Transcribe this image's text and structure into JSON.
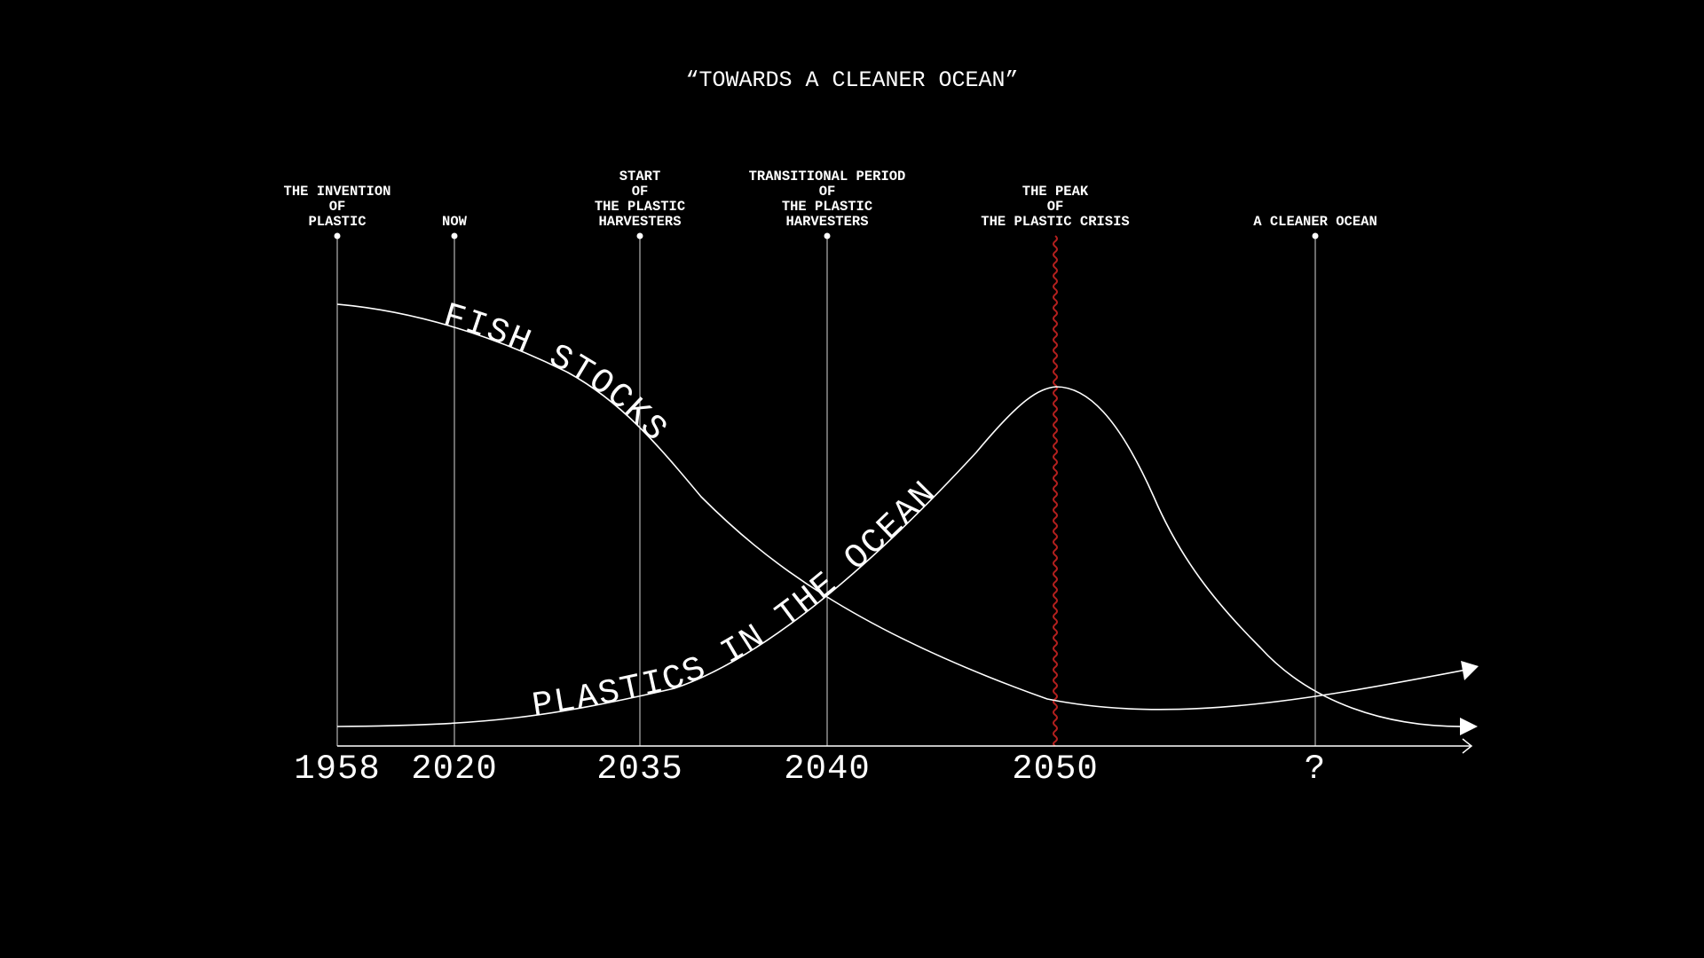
{
  "title": "“TOWARDS A CLEANER OCEAN”",
  "chart_data": {
    "type": "line",
    "title": "“TOWARDS A CLEANER OCEAN”",
    "xlabel": "",
    "ylabel": "",
    "grid": false,
    "milestones": [
      {
        "year": "1958",
        "label": [
          "THE INVENTION",
          "OF",
          "PLASTIC"
        ]
      },
      {
        "year": "2020",
        "label": [
          "NOW"
        ]
      },
      {
        "year": "2035",
        "label": [
          "START",
          "OF",
          "THE PLASTIC",
          "HARVESTERS"
        ]
      },
      {
        "year": "2040",
        "label": [
          "TRANSITIONAL PERIOD",
          "OF",
          "THE PLASTIC",
          "HARVESTERS"
        ]
      },
      {
        "year": "2050",
        "label": [
          "THE PEAK",
          "OF",
          "THE PLASTIC CRISIS"
        ],
        "highlight": true
      },
      {
        "year": "?",
        "label": [
          "A CLEANER OCEAN"
        ]
      }
    ],
    "series": [
      {
        "name": "FISH STOCKS",
        "shape": "declining S-curve, leveling off and rising slightly at the end"
      },
      {
        "name": "PLASTICS IN THE OCEAN",
        "shape": "rises slowly, peaks at 2050, falls toward zero"
      }
    ],
    "colors": {
      "background": "#000000",
      "lines": "#ffffff",
      "peak_marker": "#b3201e"
    }
  }
}
